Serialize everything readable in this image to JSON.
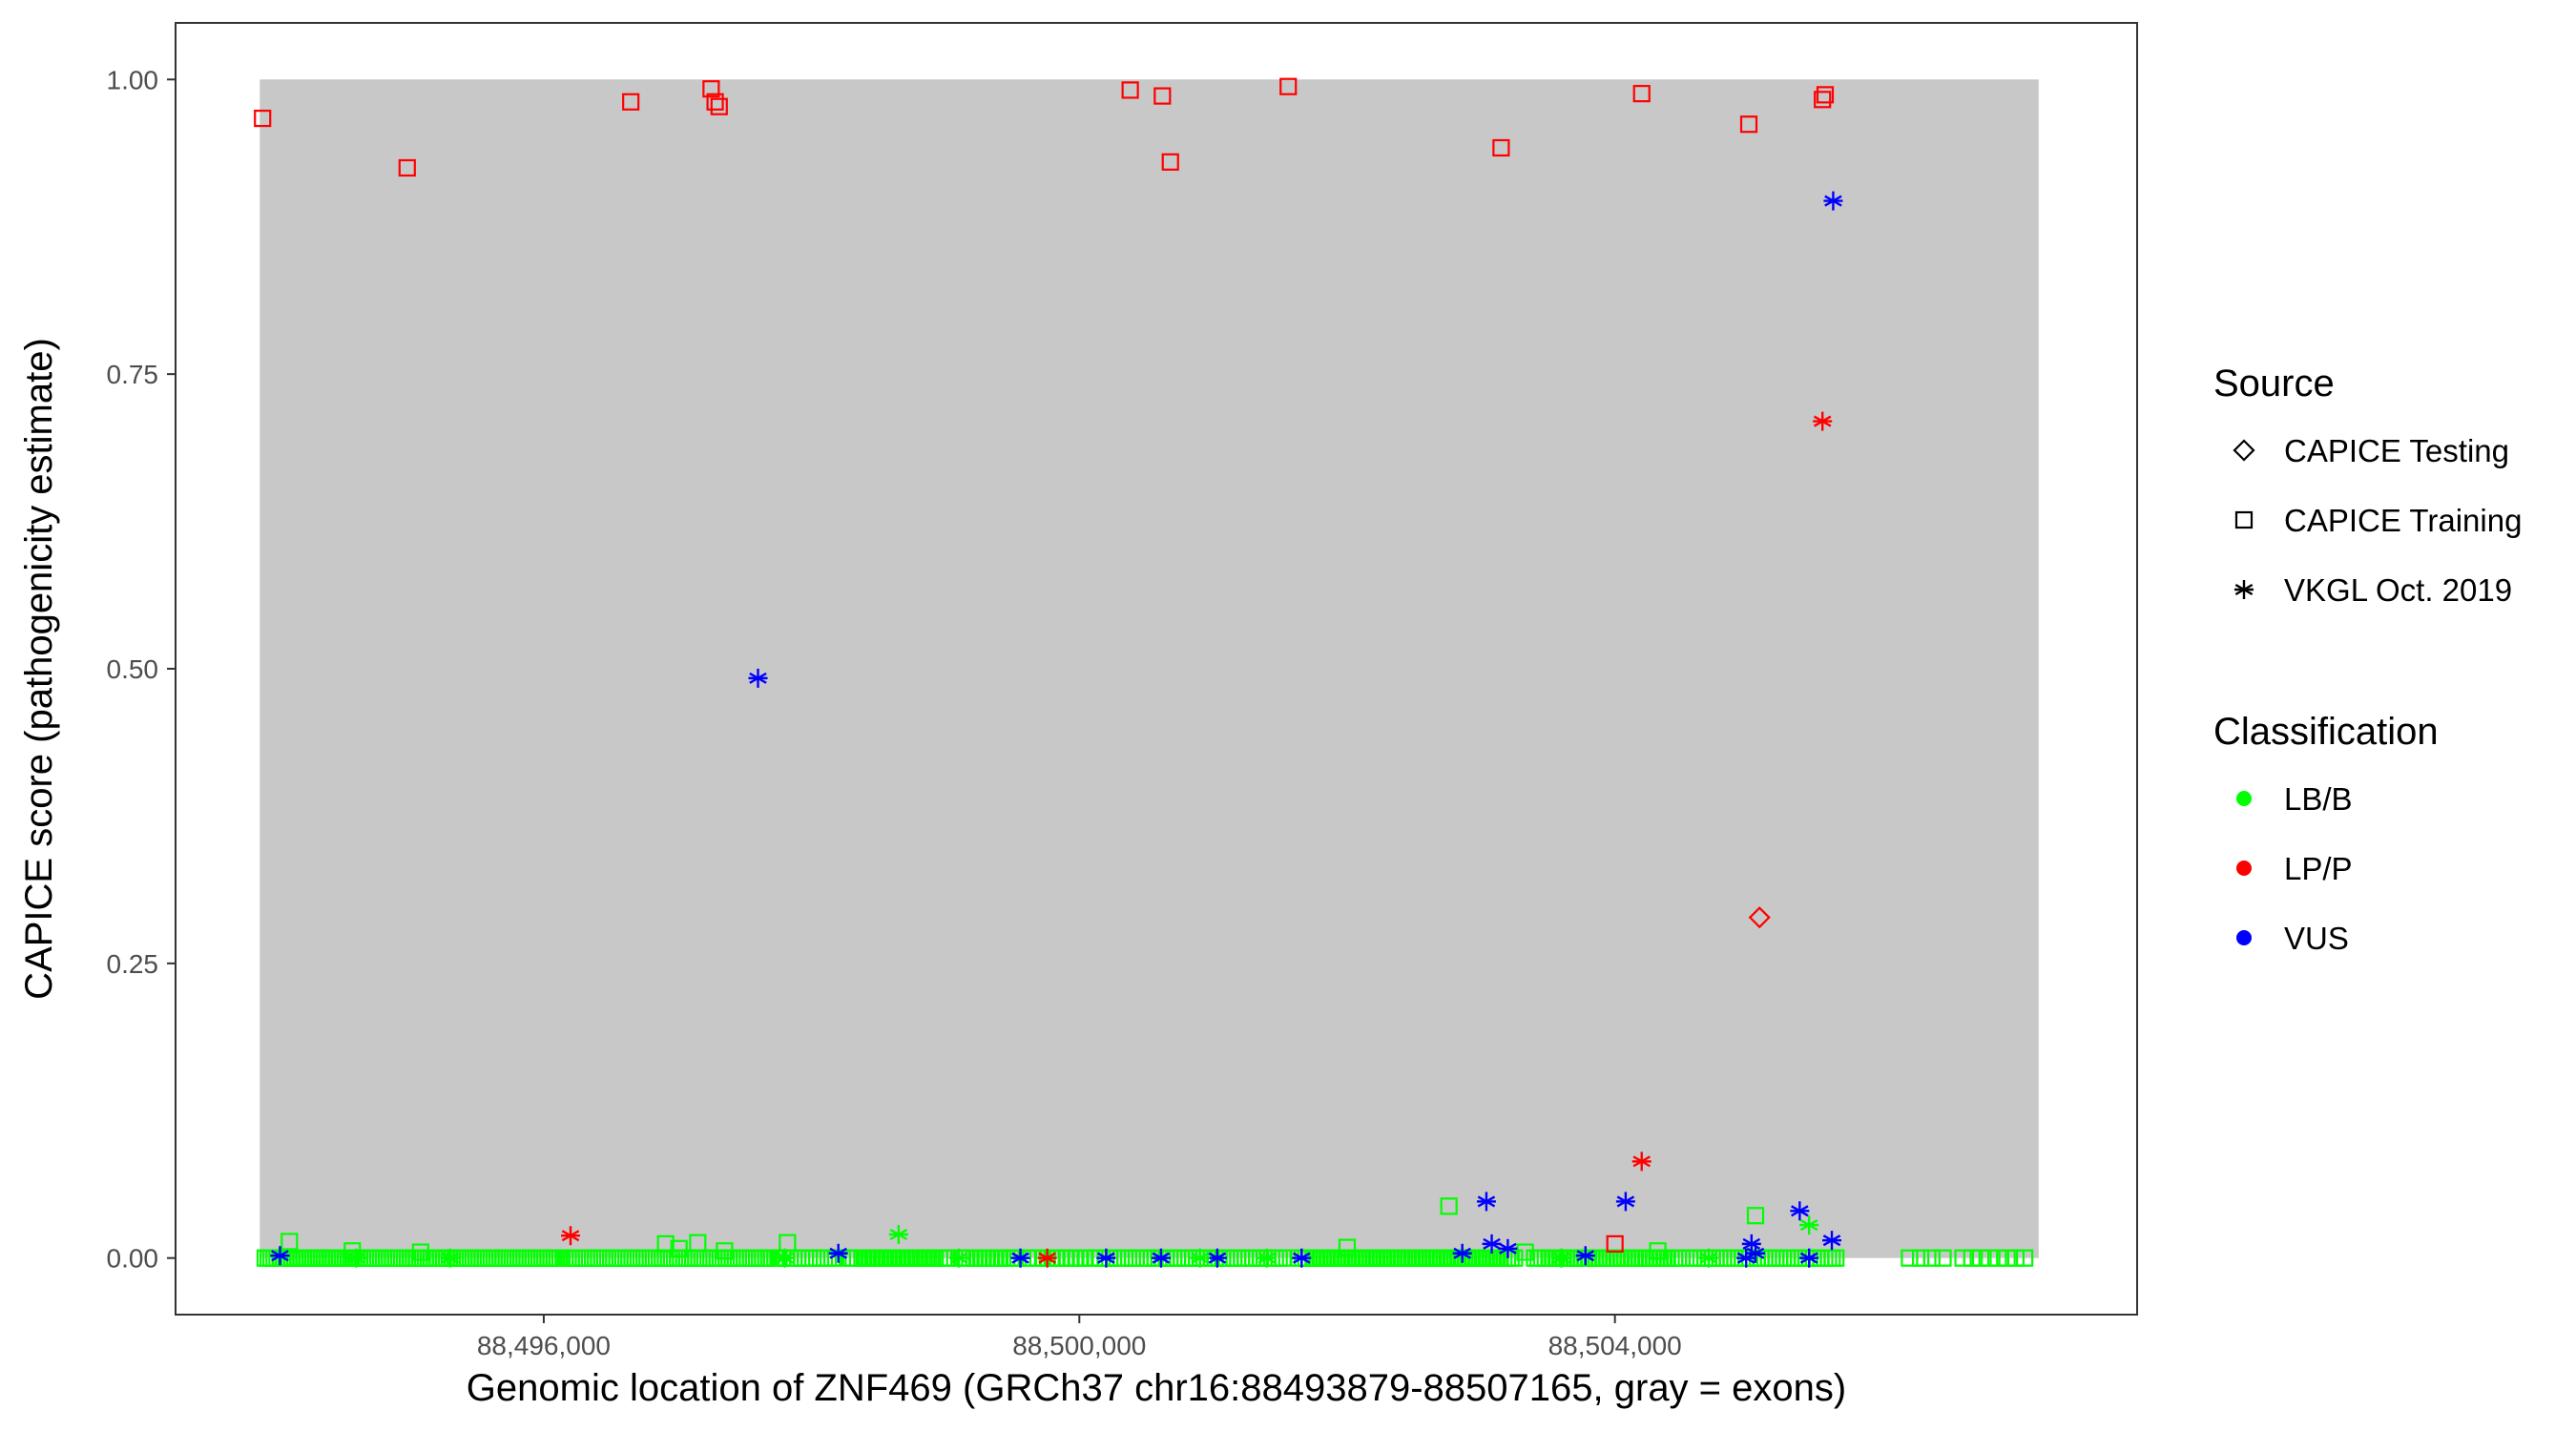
{
  "chart_data": {
    "type": "scatter",
    "xlabel": "Genomic location of ZNF469 (GRCh37 chr16:88493879-88507165, gray = exons)",
    "ylabel": "CAPICE score (pathogenicity estimate)",
    "xlim": [
      93250,
      107900
    ],
    "ylim": [
      -0.048,
      1.048
    ],
    "x_ticks": [
      96000,
      100000,
      104000
    ],
    "x_tick_labels": [
      "88,496,000",
      "88,500,000",
      "88,504,000"
    ],
    "y_ticks": [
      0,
      0.25,
      0.5,
      0.75,
      1
    ],
    "y_tick_labels": [
      "0.00",
      "0.25",
      "0.50",
      "0.75",
      "1.00"
    ],
    "x_offset": 88400000,
    "shaded_region": {
      "x": [
        93879,
        107165
      ],
      "y": [
        0,
        1
      ],
      "color": "#c8c8c8"
    },
    "grid": false,
    "legend_position": "right",
    "legend": {
      "source_title": "Source",
      "sources": [
        {
          "label": "CAPICE Testing",
          "shape": "diamond"
        },
        {
          "label": "CAPICE Training",
          "shape": "square"
        },
        {
          "label": "VKGL Oct. 2019",
          "shape": "asterisk"
        }
      ],
      "class_title": "Classification",
      "classes": [
        {
          "label": "LB/B",
          "color": "#00ff00"
        },
        {
          "label": "LP/P",
          "color": "#ff0000"
        },
        {
          "label": "VUS",
          "color": "#0000ff"
        }
      ]
    },
    "points": [
      {
        "x": 93900,
        "y": 0.967,
        "source": "CAPICE Training",
        "class": "LP/P"
      },
      {
        "x": 94980,
        "y": 0.925,
        "source": "CAPICE Training",
        "class": "LP/P"
      },
      {
        "x": 96650,
        "y": 0.981,
        "source": "CAPICE Training",
        "class": "LP/P"
      },
      {
        "x": 97250,
        "y": 0.992,
        "source": "CAPICE Training",
        "class": "LP/P"
      },
      {
        "x": 97280,
        "y": 0.981,
        "source": "CAPICE Training",
        "class": "LP/P"
      },
      {
        "x": 97310,
        "y": 0.977,
        "source": "CAPICE Training",
        "class": "LP/P"
      },
      {
        "x": 100380,
        "y": 0.991,
        "source": "CAPICE Training",
        "class": "LP/P"
      },
      {
        "x": 100620,
        "y": 0.986,
        "source": "CAPICE Training",
        "class": "LP/P"
      },
      {
        "x": 100680,
        "y": 0.93,
        "source": "CAPICE Training",
        "class": "LP/P"
      },
      {
        "x": 101560,
        "y": 0.994,
        "source": "CAPICE Training",
        "class": "LP/P"
      },
      {
        "x": 103150,
        "y": 0.942,
        "source": "CAPICE Training",
        "class": "LP/P"
      },
      {
        "x": 104200,
        "y": 0.988,
        "source": "CAPICE Training",
        "class": "LP/P"
      },
      {
        "x": 105000,
        "y": 0.962,
        "source": "CAPICE Training",
        "class": "LP/P"
      },
      {
        "x": 105550,
        "y": 0.983,
        "source": "CAPICE Training",
        "class": "LP/P"
      },
      {
        "x": 105570,
        "y": 0.987,
        "source": "CAPICE Training",
        "class": "LP/P"
      },
      {
        "x": 104000,
        "y": 0.012,
        "source": "CAPICE Training",
        "class": "LP/P"
      },
      {
        "x": 105630,
        "y": 0.897,
        "source": "VKGL Oct. 2019",
        "class": "VUS"
      },
      {
        "x": 105550,
        "y": 0.71,
        "source": "VKGL Oct. 2019",
        "class": "LP/P"
      },
      {
        "x": 97600,
        "y": 0.492,
        "source": "VKGL Oct. 2019",
        "class": "VUS"
      },
      {
        "x": 105080,
        "y": 0.289,
        "source": "CAPICE Testing",
        "class": "LP/P"
      },
      {
        "x": 104200,
        "y": 0.082,
        "source": "VKGL Oct. 2019",
        "class": "LP/P"
      },
      {
        "x": 96200,
        "y": 0.019,
        "source": "VKGL Oct. 2019",
        "class": "LP/P"
      },
      {
        "x": 99760,
        "y": 0.0,
        "source": "VKGL Oct. 2019",
        "class": "LP/P"
      },
      {
        "x": 104080,
        "y": 0.048,
        "source": "VKGL Oct. 2019",
        "class": "VUS"
      },
      {
        "x": 103040,
        "y": 0.048,
        "source": "VKGL Oct. 2019",
        "class": "VUS"
      },
      {
        "x": 103080,
        "y": 0.012,
        "source": "VKGL Oct. 2019",
        "class": "VUS"
      },
      {
        "x": 103200,
        "y": 0.008,
        "source": "VKGL Oct. 2019",
        "class": "VUS"
      },
      {
        "x": 102860,
        "y": 0.004,
        "source": "VKGL Oct. 2019",
        "class": "VUS"
      },
      {
        "x": 105380,
        "y": 0.04,
        "source": "VKGL Oct. 2019",
        "class": "VUS"
      },
      {
        "x": 105620,
        "y": 0.015,
        "source": "VKGL Oct. 2019",
        "class": "VUS"
      },
      {
        "x": 105020,
        "y": 0.012,
        "source": "VKGL Oct. 2019",
        "class": "VUS"
      },
      {
        "x": 105050,
        "y": 0.004,
        "source": "VKGL Oct. 2019",
        "class": "VUS"
      },
      {
        "x": 104980,
        "y": 0.0,
        "source": "VKGL Oct. 2019",
        "class": "VUS"
      },
      {
        "x": 105450,
        "y": 0.0,
        "source": "VKGL Oct. 2019",
        "class": "VUS"
      },
      {
        "x": 103780,
        "y": 0.002,
        "source": "VKGL Oct. 2019",
        "class": "VUS"
      },
      {
        "x": 94030,
        "y": 0.002,
        "source": "VKGL Oct. 2019",
        "class": "VUS"
      },
      {
        "x": 98200,
        "y": 0.004,
        "source": "VKGL Oct. 2019",
        "class": "VUS"
      },
      {
        "x": 99560,
        "y": 0.0,
        "source": "VKGL Oct. 2019",
        "class": "VUS"
      },
      {
        "x": 100200,
        "y": 0.0,
        "source": "VKGL Oct. 2019",
        "class": "VUS"
      },
      {
        "x": 100610,
        "y": 0.0,
        "source": "VKGL Oct. 2019",
        "class": "VUS"
      },
      {
        "x": 101030,
        "y": 0.0,
        "source": "VKGL Oct. 2019",
        "class": "VUS"
      },
      {
        "x": 101660,
        "y": 0.0,
        "source": "VKGL Oct. 2019",
        "class": "VUS"
      },
      {
        "x": 98650,
        "y": 0.02,
        "source": "VKGL Oct. 2019",
        "class": "LB/B"
      },
      {
        "x": 105450,
        "y": 0.028,
        "source": "VKGL Oct. 2019",
        "class": "LB/B"
      },
      {
        "x": 94600,
        "y": 0.0,
        "source": "VKGL Oct. 2019",
        "class": "LB/B"
      },
      {
        "x": 95300,
        "y": 0.0,
        "source": "VKGL Oct. 2019",
        "class": "LB/B"
      },
      {
        "x": 97800,
        "y": 0.0,
        "source": "VKGL Oct. 2019",
        "class": "LB/B"
      },
      {
        "x": 99100,
        "y": 0.0,
        "source": "VKGL Oct. 2019",
        "class": "LB/B"
      },
      {
        "x": 100900,
        "y": 0.0,
        "source": "VKGL Oct. 2019",
        "class": "LB/B"
      },
      {
        "x": 101400,
        "y": 0.0,
        "source": "VKGL Oct. 2019",
        "class": "LB/B"
      },
      {
        "x": 103600,
        "y": 0.0,
        "source": "VKGL Oct. 2019",
        "class": "LB/B"
      },
      {
        "x": 104700,
        "y": 0.0,
        "source": "VKGL Oct. 2019",
        "class": "LB/B"
      },
      {
        "x": 94100,
        "y": 0.014,
        "source": "CAPICE Training",
        "class": "LB/B"
      },
      {
        "x": 96910,
        "y": 0.012,
        "source": "CAPICE Training",
        "class": "LB/B"
      },
      {
        "x": 97010,
        "y": 0.008,
        "source": "CAPICE Training",
        "class": "LB/B"
      },
      {
        "x": 97150,
        "y": 0.013,
        "source": "CAPICE Training",
        "class": "LB/B"
      },
      {
        "x": 97350,
        "y": 0.006,
        "source": "CAPICE Training",
        "class": "LB/B"
      },
      {
        "x": 97820,
        "y": 0.013,
        "source": "CAPICE Training",
        "class": "LB/B"
      },
      {
        "x": 102760,
        "y": 0.044,
        "source": "CAPICE Training",
        "class": "LB/B"
      },
      {
        "x": 105050,
        "y": 0.036,
        "source": "CAPICE Training",
        "class": "LB/B"
      },
      {
        "x": 102000,
        "y": 0.009,
        "source": "CAPICE Training",
        "class": "LB/B"
      },
      {
        "x": 104320,
        "y": 0.006,
        "source": "CAPICE Training",
        "class": "LB/B"
      },
      {
        "x": 103330,
        "y": 0.005,
        "source": "CAPICE Training",
        "class": "LB/B"
      },
      {
        "x": 94570,
        "y": 0.006,
        "source": "CAPICE Training",
        "class": "LB/B"
      },
      {
        "x": 95080,
        "y": 0.005,
        "source": "CAPICE Training",
        "class": "LB/B"
      }
    ],
    "baseline_rows": [
      {
        "source": "CAPICE Training",
        "class": "LB/B",
        "y": 0.0,
        "segments": [
          [
            93920,
            94560,
            30
          ],
          [
            94580,
            96120,
            70
          ],
          [
            96160,
            97680,
            68
          ],
          [
            97700,
            98180,
            18
          ],
          [
            98280,
            99020,
            24
          ],
          [
            99120,
            99520,
            14
          ],
          [
            99620,
            100150,
            16
          ],
          [
            100200,
            101520,
            48
          ],
          [
            101640,
            103250,
            62
          ],
          [
            103400,
            104500,
            42
          ],
          [
            104560,
            105650,
            40
          ],
          [
            106200,
            106450,
            4
          ],
          [
            106600,
            107060,
            8
          ]
        ]
      }
    ]
  }
}
